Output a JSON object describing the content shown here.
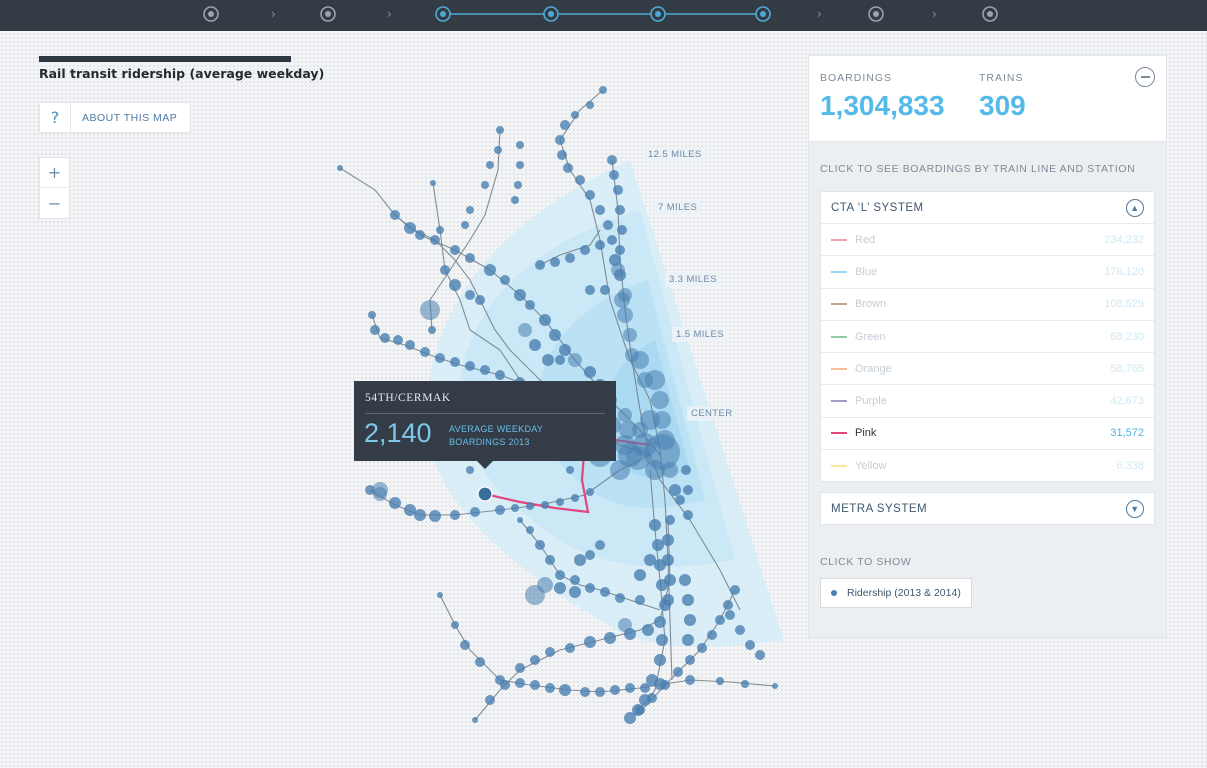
{
  "progress": {
    "steps": [
      "inactive",
      "inactive",
      "active",
      "active",
      "active",
      "active",
      "inactive",
      "inactive"
    ],
    "arrow_glyph": "›"
  },
  "title": "Rail transit ridership (average weekday)",
  "about": {
    "icon": "?",
    "label": "ABOUT THIS MAP"
  },
  "zoom": {
    "in": "+",
    "out": "−"
  },
  "distances": [
    "12.5 MILES",
    "7 MILES",
    "3.3 MILES",
    "1.5 MILES",
    "CENTER"
  ],
  "tooltip": {
    "station": "54TH/CERMAK",
    "value": "2,140",
    "caption_line1": "AVERAGE WEEKDAY",
    "caption_line2": "BOARDINGS 2013"
  },
  "stats": {
    "boardings_label": "BOARDINGS",
    "boardings_value": "1,304,833",
    "trains_label": "TRAINS",
    "trains_value": "309"
  },
  "instruction": "CLICK TO SEE BOARDINGS BY TRAIN LINE AND STATION",
  "cta": {
    "title": "CTA ‘L’ SYSTEM",
    "expanded": true,
    "lines": [
      {
        "name": "Red",
        "value": "234,232",
        "color": "#e3556d",
        "active": false
      },
      {
        "name": "Blue",
        "value": "176,120",
        "color": "#47b6e6",
        "active": false
      },
      {
        "name": "Brown",
        "value": "108,529",
        "color": "#8a5a3c",
        "active": false
      },
      {
        "name": "Green",
        "value": "68,230",
        "color": "#3aa35a",
        "active": false
      },
      {
        "name": "Orange",
        "value": "58,765",
        "color": "#f5874a",
        "active": false
      },
      {
        "name": "Purple",
        "value": "42,673",
        "color": "#5b4a9e",
        "active": false
      },
      {
        "name": "Pink",
        "value": "31,572",
        "color": "#e1467f",
        "active": true
      },
      {
        "name": "Yellow",
        "value": "6,338",
        "color": "#f5d546",
        "active": false
      }
    ]
  },
  "metra": {
    "title": "METRA SYSTEM",
    "expanded": false
  },
  "show": {
    "label": "CLICK TO SHOW",
    "toggle": "Ridership (2013 & 2014)"
  },
  "colors": {
    "accent": "#55baea",
    "station_dot": "#4a7fb0",
    "pink_line": "#e1467f",
    "header_bg": "#333c45"
  }
}
